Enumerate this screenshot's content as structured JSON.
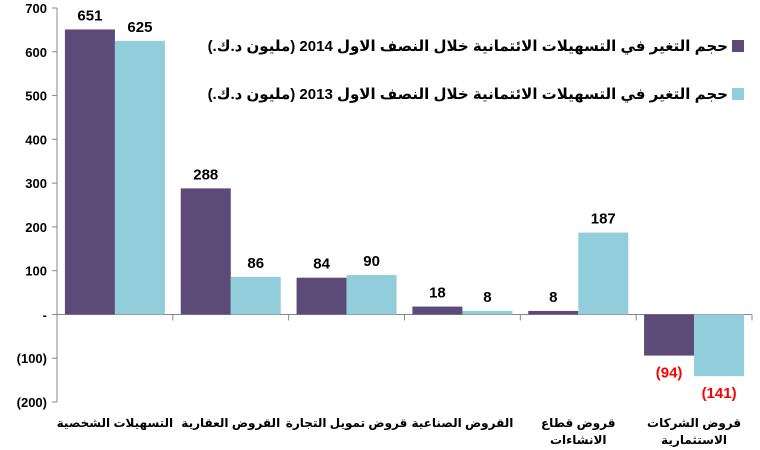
{
  "chart_data": {
    "type": "bar",
    "categories": [
      [
        "التسهيلات الشخصية"
      ],
      [
        "القروض العقارية"
      ],
      [
        "قروض تمويل التجارة"
      ],
      [
        "القروض الصناعية"
      ],
      [
        "قروض قطاع",
        "الانشاءات"
      ],
      [
        "قروض الشركات",
        "الاستثمارية"
      ]
    ],
    "series": [
      {
        "name": "حجم التغير في التسهيلات الائتمانية خلال النصف الاول 2014 (مليون د.ك.)",
        "color": "#5c4a78",
        "values": [
          651,
          288,
          84,
          18,
          8,
          -94
        ],
        "labels": [
          "651",
          "288",
          "84",
          "18",
          "8",
          "(94)"
        ]
      },
      {
        "name": "حجم التغير في التسهيلات الائتمانية خلال النصف الاول 2013 (مليون د.ك.)",
        "color": "#92cddc",
        "values": [
          625,
          86,
          90,
          8,
          187,
          -141
        ],
        "labels": [
          "625",
          "86",
          "90",
          "8",
          "187",
          "(141)"
        ]
      }
    ],
    "yticks": [
      700,
      600,
      500,
      400,
      300,
      200,
      100,
      0,
      -100,
      -200
    ],
    "yticklabels": [
      "700",
      "600",
      "500",
      "400",
      "300",
      "200",
      "100",
      "-",
      "(100)",
      "(200)"
    ],
    "ylim": [
      -200,
      700
    ],
    "legend_position": "top-right",
    "negative_label_color": "#ff0000",
    "grid": false
  }
}
